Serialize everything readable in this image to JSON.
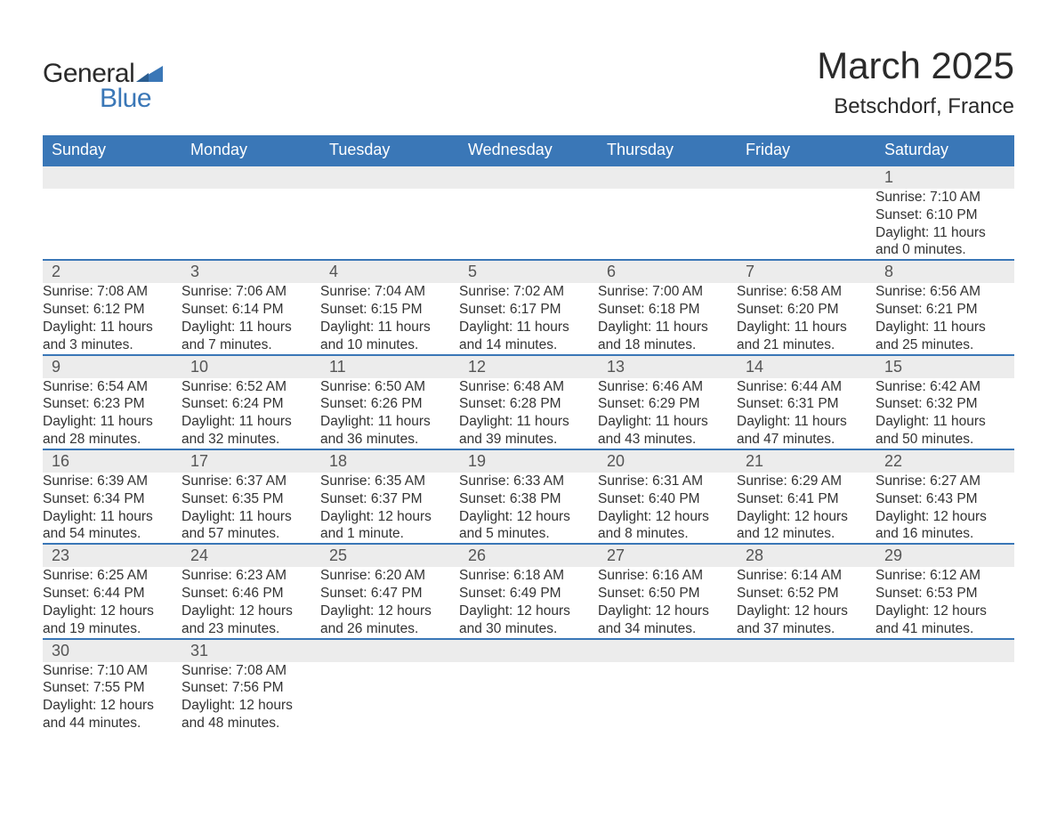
{
  "logo": {
    "general": "General",
    "blue": "Blue"
  },
  "title": "March 2025",
  "subtitle": "Betschdorf, France",
  "calendar": {
    "header_bg": "#3a77b7",
    "header_fg": "#ffffff",
    "daynum_bg": "#ececec",
    "row_divider": "#3a77b7",
    "text_color": "#333333",
    "font_family": "Arial",
    "title_fontsize": 42,
    "subtitle_fontsize": 24,
    "header_fontsize": 18,
    "daynum_fontsize": 18,
    "detail_fontsize": 15.5,
    "days_of_week": [
      "Sunday",
      "Monday",
      "Tuesday",
      "Wednesday",
      "Thursday",
      "Friday",
      "Saturday"
    ],
    "weeks": [
      [
        null,
        null,
        null,
        null,
        null,
        null,
        {
          "n": "1",
          "sr": "Sunrise: 7:10 AM",
          "ss": "Sunset: 6:10 PM",
          "d1": "Daylight: 11 hours",
          "d2": "and 0 minutes."
        }
      ],
      [
        {
          "n": "2",
          "sr": "Sunrise: 7:08 AM",
          "ss": "Sunset: 6:12 PM",
          "d1": "Daylight: 11 hours",
          "d2": "and 3 minutes."
        },
        {
          "n": "3",
          "sr": "Sunrise: 7:06 AM",
          "ss": "Sunset: 6:14 PM",
          "d1": "Daylight: 11 hours",
          "d2": "and 7 minutes."
        },
        {
          "n": "4",
          "sr": "Sunrise: 7:04 AM",
          "ss": "Sunset: 6:15 PM",
          "d1": "Daylight: 11 hours",
          "d2": "and 10 minutes."
        },
        {
          "n": "5",
          "sr": "Sunrise: 7:02 AM",
          "ss": "Sunset: 6:17 PM",
          "d1": "Daylight: 11 hours",
          "d2": "and 14 minutes."
        },
        {
          "n": "6",
          "sr": "Sunrise: 7:00 AM",
          "ss": "Sunset: 6:18 PM",
          "d1": "Daylight: 11 hours",
          "d2": "and 18 minutes."
        },
        {
          "n": "7",
          "sr": "Sunrise: 6:58 AM",
          "ss": "Sunset: 6:20 PM",
          "d1": "Daylight: 11 hours",
          "d2": "and 21 minutes."
        },
        {
          "n": "8",
          "sr": "Sunrise: 6:56 AM",
          "ss": "Sunset: 6:21 PM",
          "d1": "Daylight: 11 hours",
          "d2": "and 25 minutes."
        }
      ],
      [
        {
          "n": "9",
          "sr": "Sunrise: 6:54 AM",
          "ss": "Sunset: 6:23 PM",
          "d1": "Daylight: 11 hours",
          "d2": "and 28 minutes."
        },
        {
          "n": "10",
          "sr": "Sunrise: 6:52 AM",
          "ss": "Sunset: 6:24 PM",
          "d1": "Daylight: 11 hours",
          "d2": "and 32 minutes."
        },
        {
          "n": "11",
          "sr": "Sunrise: 6:50 AM",
          "ss": "Sunset: 6:26 PM",
          "d1": "Daylight: 11 hours",
          "d2": "and 36 minutes."
        },
        {
          "n": "12",
          "sr": "Sunrise: 6:48 AM",
          "ss": "Sunset: 6:28 PM",
          "d1": "Daylight: 11 hours",
          "d2": "and 39 minutes."
        },
        {
          "n": "13",
          "sr": "Sunrise: 6:46 AM",
          "ss": "Sunset: 6:29 PM",
          "d1": "Daylight: 11 hours",
          "d2": "and 43 minutes."
        },
        {
          "n": "14",
          "sr": "Sunrise: 6:44 AM",
          "ss": "Sunset: 6:31 PM",
          "d1": "Daylight: 11 hours",
          "d2": "and 47 minutes."
        },
        {
          "n": "15",
          "sr": "Sunrise: 6:42 AM",
          "ss": "Sunset: 6:32 PM",
          "d1": "Daylight: 11 hours",
          "d2": "and 50 minutes."
        }
      ],
      [
        {
          "n": "16",
          "sr": "Sunrise: 6:39 AM",
          "ss": "Sunset: 6:34 PM",
          "d1": "Daylight: 11 hours",
          "d2": "and 54 minutes."
        },
        {
          "n": "17",
          "sr": "Sunrise: 6:37 AM",
          "ss": "Sunset: 6:35 PM",
          "d1": "Daylight: 11 hours",
          "d2": "and 57 minutes."
        },
        {
          "n": "18",
          "sr": "Sunrise: 6:35 AM",
          "ss": "Sunset: 6:37 PM",
          "d1": "Daylight: 12 hours",
          "d2": "and 1 minute."
        },
        {
          "n": "19",
          "sr": "Sunrise: 6:33 AM",
          "ss": "Sunset: 6:38 PM",
          "d1": "Daylight: 12 hours",
          "d2": "and 5 minutes."
        },
        {
          "n": "20",
          "sr": "Sunrise: 6:31 AM",
          "ss": "Sunset: 6:40 PM",
          "d1": "Daylight: 12 hours",
          "d2": "and 8 minutes."
        },
        {
          "n": "21",
          "sr": "Sunrise: 6:29 AM",
          "ss": "Sunset: 6:41 PM",
          "d1": "Daylight: 12 hours",
          "d2": "and 12 minutes."
        },
        {
          "n": "22",
          "sr": "Sunrise: 6:27 AM",
          "ss": "Sunset: 6:43 PM",
          "d1": "Daylight: 12 hours",
          "d2": "and 16 minutes."
        }
      ],
      [
        {
          "n": "23",
          "sr": "Sunrise: 6:25 AM",
          "ss": "Sunset: 6:44 PM",
          "d1": "Daylight: 12 hours",
          "d2": "and 19 minutes."
        },
        {
          "n": "24",
          "sr": "Sunrise: 6:23 AM",
          "ss": "Sunset: 6:46 PM",
          "d1": "Daylight: 12 hours",
          "d2": "and 23 minutes."
        },
        {
          "n": "25",
          "sr": "Sunrise: 6:20 AM",
          "ss": "Sunset: 6:47 PM",
          "d1": "Daylight: 12 hours",
          "d2": "and 26 minutes."
        },
        {
          "n": "26",
          "sr": "Sunrise: 6:18 AM",
          "ss": "Sunset: 6:49 PM",
          "d1": "Daylight: 12 hours",
          "d2": "and 30 minutes."
        },
        {
          "n": "27",
          "sr": "Sunrise: 6:16 AM",
          "ss": "Sunset: 6:50 PM",
          "d1": "Daylight: 12 hours",
          "d2": "and 34 minutes."
        },
        {
          "n": "28",
          "sr": "Sunrise: 6:14 AM",
          "ss": "Sunset: 6:52 PM",
          "d1": "Daylight: 12 hours",
          "d2": "and 37 minutes."
        },
        {
          "n": "29",
          "sr": "Sunrise: 6:12 AM",
          "ss": "Sunset: 6:53 PM",
          "d1": "Daylight: 12 hours",
          "d2": "and 41 minutes."
        }
      ],
      [
        {
          "n": "30",
          "sr": "Sunrise: 7:10 AM",
          "ss": "Sunset: 7:55 PM",
          "d1": "Daylight: 12 hours",
          "d2": "and 44 minutes."
        },
        {
          "n": "31",
          "sr": "Sunrise: 7:08 AM",
          "ss": "Sunset: 7:56 PM",
          "d1": "Daylight: 12 hours",
          "d2": "and 48 minutes."
        },
        null,
        null,
        null,
        null,
        null
      ]
    ]
  }
}
